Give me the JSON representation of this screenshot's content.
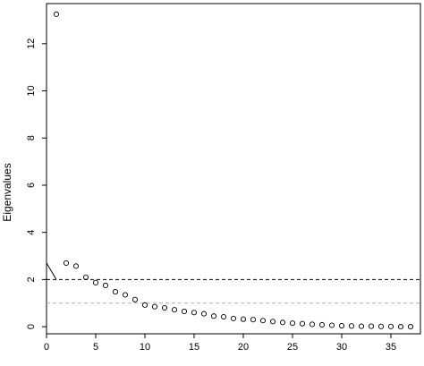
{
  "chart_data": {
    "type": "scatter",
    "ylabel": "Eigenvalues",
    "xlabel": "",
    "xlim": [
      0,
      38
    ],
    "ylim": [
      -0.3,
      13.7
    ],
    "x_ticks": [
      0,
      5,
      10,
      15,
      20,
      25,
      30,
      35
    ],
    "y_ticks": [
      0,
      2,
      4,
      6,
      8,
      10,
      12
    ],
    "points": [
      {
        "x": 1,
        "y": 13.25
      },
      {
        "x": 2,
        "y": 2.7
      },
      {
        "x": 3,
        "y": 2.57
      },
      {
        "x": 4,
        "y": 2.1
      },
      {
        "x": 5,
        "y": 1.87
      },
      {
        "x": 6,
        "y": 1.75
      },
      {
        "x": 7,
        "y": 1.48
      },
      {
        "x": 8,
        "y": 1.35
      },
      {
        "x": 9,
        "y": 1.15
      },
      {
        "x": 10,
        "y": 0.92
      },
      {
        "x": 11,
        "y": 0.85
      },
      {
        "x": 12,
        "y": 0.8
      },
      {
        "x": 13,
        "y": 0.72
      },
      {
        "x": 14,
        "y": 0.65
      },
      {
        "x": 15,
        "y": 0.6
      },
      {
        "x": 16,
        "y": 0.55
      },
      {
        "x": 17,
        "y": 0.45
      },
      {
        "x": 18,
        "y": 0.42
      },
      {
        "x": 19,
        "y": 0.35
      },
      {
        "x": 20,
        "y": 0.32
      },
      {
        "x": 21,
        "y": 0.3
      },
      {
        "x": 22,
        "y": 0.26
      },
      {
        "x": 23,
        "y": 0.22
      },
      {
        "x": 24,
        "y": 0.18
      },
      {
        "x": 25,
        "y": 0.15
      },
      {
        "x": 26,
        "y": 0.13
      },
      {
        "x": 27,
        "y": 0.1
      },
      {
        "x": 28,
        "y": 0.08
      },
      {
        "x": 29,
        "y": 0.06
      },
      {
        "x": 30,
        "y": 0.04
      },
      {
        "x": 31,
        "y": 0.03
      },
      {
        "x": 32,
        "y": 0.02
      },
      {
        "x": 33,
        "y": 0.02
      },
      {
        "x": 34,
        "y": 0.01
      },
      {
        "x": 35,
        "y": 0.01
      },
      {
        "x": 36,
        "y": 0.0
      },
      {
        "x": 37,
        "y": 0.0
      }
    ],
    "reference_lines": [
      {
        "y": 2,
        "style": "dashed",
        "color": "#000000"
      },
      {
        "y": 1,
        "style": "dashed",
        "color": "#b0b0b0"
      }
    ],
    "left_segment": {
      "x": [
        0,
        1
      ],
      "y": [
        2.7,
        2.0
      ]
    },
    "grid": false,
    "legend": "none"
  }
}
